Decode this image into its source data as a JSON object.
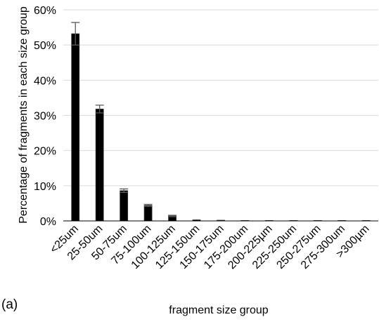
{
  "panel_label": "(a)",
  "colors": {
    "bar": "#000000",
    "bar_outline": "#333333",
    "error_bar": "#595959",
    "grid": "#d9d9d9",
    "axis": "#000000"
  },
  "chart_data": {
    "type": "bar",
    "title": "",
    "xlabel": "fragment size group",
    "ylabel": "Percentage of fragments in each size group",
    "ylim": [
      0,
      60
    ],
    "y_ticks": [
      "0%",
      "10%",
      "20%",
      "30%",
      "40%",
      "50%",
      "60%"
    ],
    "y_tick_values": [
      0,
      10,
      20,
      30,
      40,
      50,
      60
    ],
    "grid": true,
    "legend": "none",
    "categories": [
      "<25um",
      "25-50um",
      "50-75um",
      "75-100um",
      "100-125um",
      "125-150um",
      "150-175um",
      "175-200um",
      "200-225µm",
      "225-250um",
      "250-275um",
      "275-300um",
      ">300µm"
    ],
    "values": [
      53.2,
      31.8,
      8.6,
      4.4,
      1.4,
      0.3,
      0.2,
      0.1,
      0.1,
      0.05,
      0.05,
      0.05,
      0.05
    ],
    "error": [
      3.2,
      1.1,
      0.5,
      0.3,
      0.2,
      0.05,
      0.05,
      0.05,
      0.05,
      0.02,
      0.02,
      0.02,
      0.02
    ]
  }
}
